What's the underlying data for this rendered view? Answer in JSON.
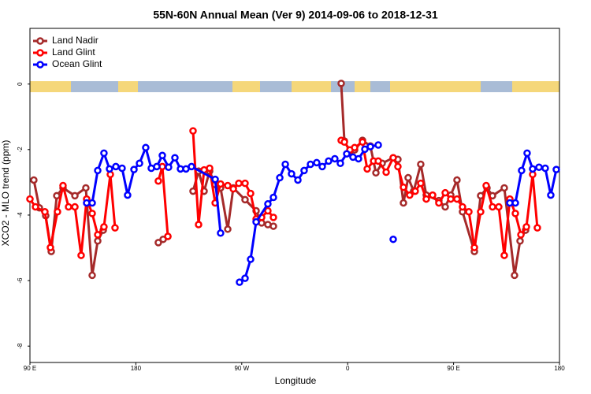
{
  "chart_data": {
    "type": "line",
    "title": "55N-60N Annual Mean (Ver 9)   2014-09-06 to 2018-12-31",
    "x_label": "Longitude",
    "y_label": "XCO2 - MLO trend (ppm)",
    "xlim": [
      90,
      540
    ],
    "ylim": [
      -8.5,
      1.7
    ],
    "xticks": [
      {
        "value": 90,
        "label": "90 E"
      },
      180,
      {
        "value": 270,
        "label": "90 W"
      },
      {
        "value": 360,
        "label": "0"
      },
      {
        "value": 450,
        "label": "90 E"
      },
      {
        "value": 540,
        "label": "180"
      }
    ],
    "yticks": [
      0,
      -2,
      -4,
      -6,
      -8
    ],
    "legend": "top-left",
    "series": [
      {
        "name": "Land Nadir",
        "color": "#a52a2a",
        "x": [
          93.3,
          98.0,
          103.4,
          108.1,
          112.8,
          118.1,
          128.2,
          137.5,
          142.9,
          147.6,
          152.3,
          null,
          199.1,
          203.2,
          207.2,
          null,
          228.6,
          233.3,
          238.0,
          242.7,
          247.4,
          252.0,
          258.1,
          262.8,
          272.8,
          282.2,
          286.9,
          292.2,
          296.9,
          null,
          354.5,
          357.2,
          361.9,
          365.9,
          372.6,
          379.3,
          384.0,
          389.3,
          398.7,
          402.7,
          407.4,
          411.4,
          416.1,
          422.1,
          426.8,
          437.5,
          442.9,
          447.6,
          452.9,
          457.6,
          467.7,
          473.0,
          478.4,
          483.1,
          493.1,
          501.8,
          506.5,
          511.2
        ],
        "values": [
          -2.93,
          -3.78,
          -4.02,
          -5.11,
          -3.41,
          -3.17,
          -3.41,
          -3.17,
          -5.84,
          -4.79,
          -4.46,
          null,
          -4.84,
          -4.74,
          -4.65,
          null,
          -3.27,
          -2.66,
          -3.27,
          -2.66,
          -3.07,
          -3.17,
          -4.43,
          -3.17,
          -3.53,
          -3.87,
          -4.24,
          -4.29,
          -4.34,
          null,
          0.02,
          -1.74,
          -2.06,
          -2.01,
          -1.72,
          -1.89,
          -2.71,
          -2.42,
          -2.25,
          -2.3,
          -3.63,
          -2.86,
          -3.27,
          -2.45,
          -3.39,
          -3.56,
          -3.75,
          -3.39,
          -2.93,
          -3.9,
          -5.11,
          -3.41,
          -3.17,
          -3.41,
          -3.17,
          -5.84,
          -4.79,
          -4.46
        ]
      },
      {
        "name": "Land Glint",
        "color": "#ff0000",
        "x": [
          90.0,
          94.7,
          102.7,
          107.4,
          113.4,
          118.1,
          122.8,
          128.2,
          133.5,
          138.2,
          142.9,
          147.6,
          152.9,
          158.3,
          162.3,
          null,
          199.1,
          202.5,
          207.2,
          null,
          228.6,
          233.3,
          238.0,
          242.7,
          247.4,
          252.0,
          258.1,
          262.8,
          267.5,
          272.8,
          277.5,
          282.2,
          286.9,
          292.2,
          296.9,
          null,
          354.5,
          357.2,
          361.9,
          365.9,
          372.6,
          376.6,
          382.0,
          386.0,
          392.7,
          398.7,
          402.7,
          407.4,
          412.7,
          417.4,
          422.1,
          426.8,
          432.2,
          437.5,
          442.9,
          447.6,
          452.9,
          457.6,
          463.0,
          467.7,
          473.0,
          477.7,
          483.1,
          488.4,
          493.1,
          497.8,
          502.5,
          507.2,
          511.9,
          517.2,
          521.2
        ],
        "values": [
          -3.51,
          -3.75,
          -3.9,
          -4.99,
          -3.9,
          -3.1,
          -3.75,
          -3.75,
          -5.23,
          -3.51,
          -3.95,
          -4.6,
          -4.36,
          -2.76,
          -4.39,
          null,
          -2.96,
          -2.52,
          -4.65,
          null,
          -1.43,
          -4.29,
          -2.62,
          -2.57,
          -3.63,
          -3.05,
          -3.1,
          -3.2,
          -3.03,
          -3.03,
          -3.34,
          -4.12,
          -4.07,
          -3.87,
          -4.07,
          null,
          -1.72,
          -1.77,
          -2.01,
          -1.94,
          -1.77,
          -2.59,
          -2.35,
          -2.35,
          -2.69,
          -2.25,
          -2.52,
          -3.15,
          -3.39,
          -3.27,
          -3.03,
          -3.51,
          -3.39,
          -3.63,
          -3.32,
          -3.51,
          -3.51,
          -3.75,
          -3.9,
          -4.99,
          -3.9,
          -3.1,
          -3.75,
          -3.75,
          -5.23,
          -3.51,
          -3.95,
          -4.6,
          -4.36,
          -2.76,
          -4.39
        ]
      },
      {
        "name": "Ocean Glint",
        "color": "#0000ff",
        "x": [
          138.2,
          142.9,
          147.6,
          152.9,
          157.6,
          163.0,
          168.3,
          173.0,
          178.4,
          183.1,
          188.4,
          193.1,
          197.8,
          202.5,
          207.8,
          213.2,
          217.9,
          222.6,
          227.3,
          247.4,
          252.0,
          null,
          268.1,
          272.8,
          277.5,
          282.2,
          292.2,
          296.9,
          302.3,
          307.0,
          312.3,
          317.7,
          323.0,
          328.4,
          333.7,
          338.4,
          343.8,
          349.1,
          353.8,
          359.2,
          364.5,
          369.2,
          374.6,
          379.3,
          386.0,
          null,
          398.7,
          null,
          497.8,
          502.5,
          507.8,
          512.5,
          517.2,
          522.6,
          527.9,
          532.6,
          537.3
        ],
        "values": [
          -3.63,
          -3.63,
          -2.64,
          -2.11,
          -2.59,
          -2.52,
          -2.57,
          -3.39,
          -2.61,
          -2.42,
          -1.94,
          -2.57,
          -2.52,
          -2.18,
          -2.54,
          -2.25,
          -2.59,
          -2.59,
          -2.52,
          -2.91,
          -4.55,
          null,
          -6.05,
          -5.93,
          -5.35,
          -4.21,
          -3.66,
          -3.46,
          -2.86,
          -2.45,
          -2.74,
          -2.93,
          -2.64,
          -2.45,
          -2.4,
          -2.52,
          -2.35,
          -2.28,
          -2.42,
          -2.13,
          -2.23,
          -2.28,
          -1.99,
          -1.91,
          -1.86,
          null,
          -4.74,
          null,
          -3.63,
          -3.63,
          -2.64,
          -2.11,
          -2.59,
          -2.54,
          -2.57,
          -3.39,
          -2.61
        ]
      }
    ]
  }
}
